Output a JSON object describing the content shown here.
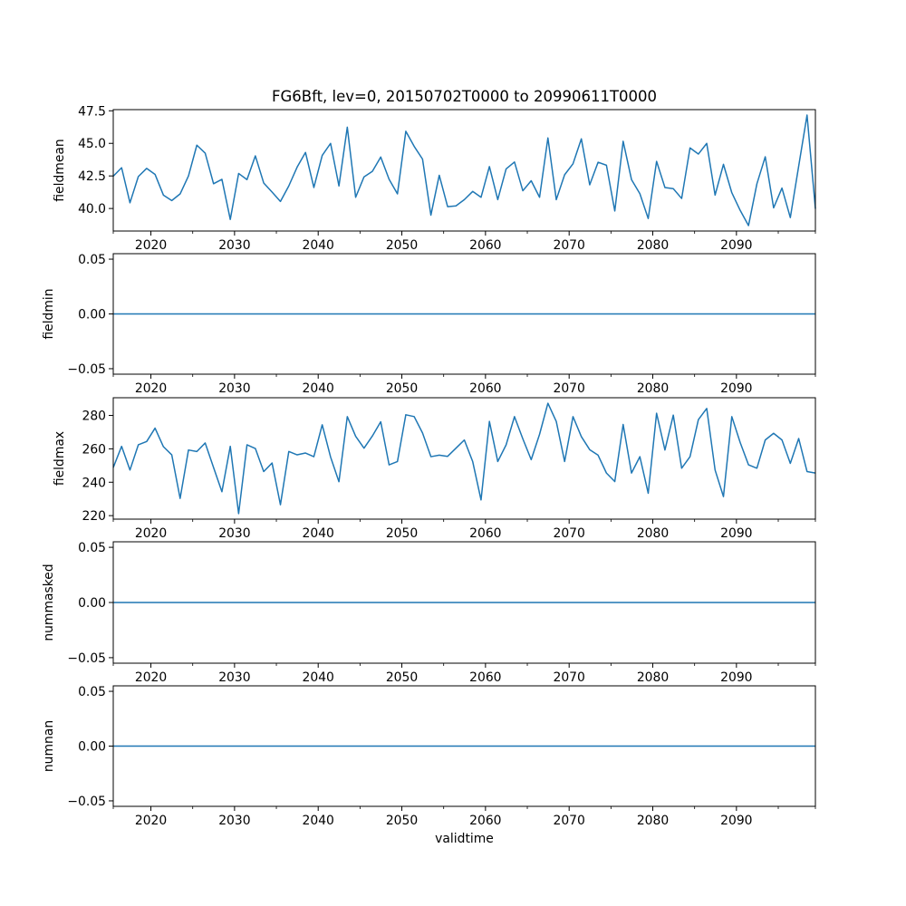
{
  "chart_data": {
    "type": "line",
    "title": "FG6Bft, lev=0, 20150702T0000 to 20990611T0000",
    "xlabel": "validtime",
    "xlim": [
      2015.5,
      2099.44
    ],
    "x_major_ticks": [
      2020,
      2030,
      2040,
      2050,
      2060,
      2070,
      2080,
      2090
    ],
    "x_tick_labels": [
      "2020",
      "2030",
      "2040",
      "2050",
      "2060",
      "2070",
      "2080",
      "2090"
    ],
    "x_minor_ticks": [
      2015.5,
      2025,
      2035,
      2045,
      2055,
      2065,
      2075,
      2085,
      2095,
      2099.44
    ],
    "line_color": "#1f77b4",
    "panels": [
      {
        "ylabel": "fieldmean",
        "ylim": [
          38.27,
          47.59
        ],
        "yticks": [
          40.0,
          42.5,
          45.0,
          47.5
        ],
        "ytick_labels": [
          "40.0",
          "42.5",
          "45.0",
          "47.5"
        ],
        "values": [
          42.48,
          43.13,
          40.44,
          42.45,
          43.08,
          42.62,
          41.03,
          40.61,
          41.12,
          42.5,
          44.86,
          44.25,
          41.9,
          42.24,
          39.16,
          42.69,
          42.22,
          44.04,
          41.96,
          41.26,
          40.54,
          41.73,
          43.18,
          44.3,
          41.61,
          44.07,
          45.0,
          41.73,
          46.24,
          40.86,
          42.43,
          42.85,
          43.95,
          42.24,
          41.12,
          45.93,
          44.77,
          43.79,
          39.49,
          42.55,
          40.14,
          40.2,
          40.68,
          41.31,
          40.86,
          43.22,
          40.68,
          43.04,
          43.57,
          41.36,
          42.13,
          40.86,
          45.42,
          40.68,
          42.59,
          43.43,
          45.35,
          41.82,
          43.55,
          43.32,
          39.81,
          45.16,
          42.22,
          41.14,
          39.23,
          43.62,
          41.61,
          41.52,
          40.77,
          44.65,
          44.18,
          45.0,
          41.03,
          43.39,
          41.21,
          39.86,
          38.69,
          41.89,
          43.97,
          40.05,
          41.57,
          39.3,
          43.25,
          47.17,
          39.98
        ]
      },
      {
        "ylabel": "fieldmin",
        "ylim": [
          -0.055,
          0.055
        ],
        "yticks": [
          -0.05,
          0.0,
          0.05
        ],
        "ytick_labels": [
          "−0.05",
          "0.00",
          "0.05"
        ],
        "constant_value": 0
      },
      {
        "ylabel": "fieldmax",
        "ylim": [
          217.9,
          290.6
        ],
        "yticks": [
          220,
          240,
          260,
          280
        ],
        "ytick_labels": [
          "220",
          "240",
          "260",
          "280"
        ],
        "values": [
          248.8,
          261.5,
          247.3,
          262.4,
          264.4,
          272.4,
          261.3,
          256.4,
          230.3,
          259.3,
          258.4,
          263.5,
          248.8,
          234.3,
          261.5,
          221.2,
          262.4,
          260.2,
          246.4,
          251.5,
          226.5,
          258.4,
          256.4,
          257.5,
          255.3,
          274.4,
          255.1,
          240.3,
          279.3,
          267.5,
          260.4,
          267.7,
          276.2,
          250.4,
          252.4,
          280.4,
          279.3,
          269.5,
          255.3,
          256.2,
          255.5,
          260.4,
          265.3,
          252.4,
          229.4,
          276.4,
          252.4,
          262.4,
          279.3,
          266.0,
          253.5,
          268.7,
          287.3,
          276.4,
          252.4,
          279.3,
          267.3,
          259.5,
          256.2,
          245.5,
          240.4,
          274.6,
          245.5,
          255.3,
          233.4,
          281.3,
          259.3,
          280.2,
          248.4,
          255.3,
          277.5,
          284.2,
          247.3,
          231.4,
          279.3,
          263.8,
          250.4,
          248.4,
          265.3,
          269.3,
          265.3,
          251.3,
          266.2,
          246.4,
          245.5
        ]
      },
      {
        "ylabel": "nummasked",
        "ylim": [
          -0.055,
          0.055
        ],
        "yticks": [
          -0.05,
          0.0,
          0.05
        ],
        "ytick_labels": [
          "−0.05",
          "0.00",
          "0.05"
        ],
        "constant_value": 0
      },
      {
        "ylabel": "numnan",
        "ylim": [
          -0.055,
          0.055
        ],
        "yticks": [
          -0.05,
          0.0,
          0.05
        ],
        "ytick_labels": [
          "−0.05",
          "0.00",
          "0.05"
        ],
        "constant_value": 0
      }
    ]
  }
}
